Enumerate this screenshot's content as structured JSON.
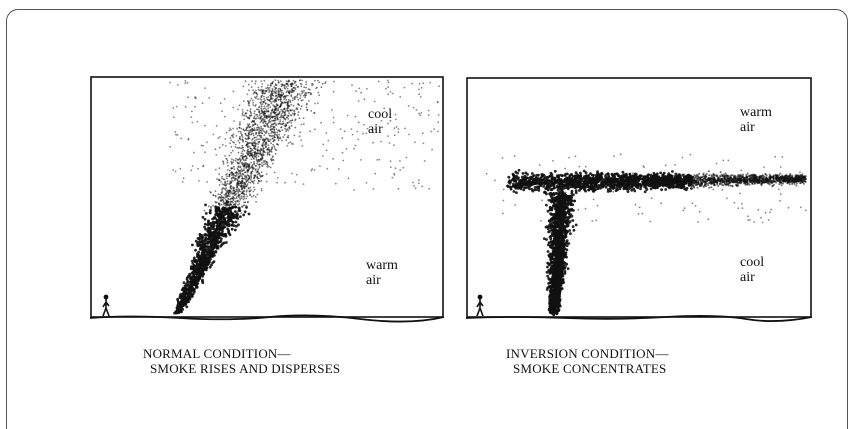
{
  "panels": [
    {
      "id": "normal",
      "labels": {
        "upper": [
          "cool",
          "air"
        ],
        "lower": [
          "warm",
          "air"
        ]
      },
      "caption": [
        "NORMAL CONDITION—",
        "SMOKE RISES AND DISPERSES"
      ]
    },
    {
      "id": "inversion",
      "labels": {
        "upper": [
          "warm",
          "air"
        ],
        "lower": [
          "cool",
          "air"
        ]
      },
      "caption": [
        "INVERSION CONDITION—",
        "SMOKE CONCENTRATES"
      ]
    }
  ],
  "colors": {
    "ink": "#111111",
    "frame": "#555555"
  }
}
